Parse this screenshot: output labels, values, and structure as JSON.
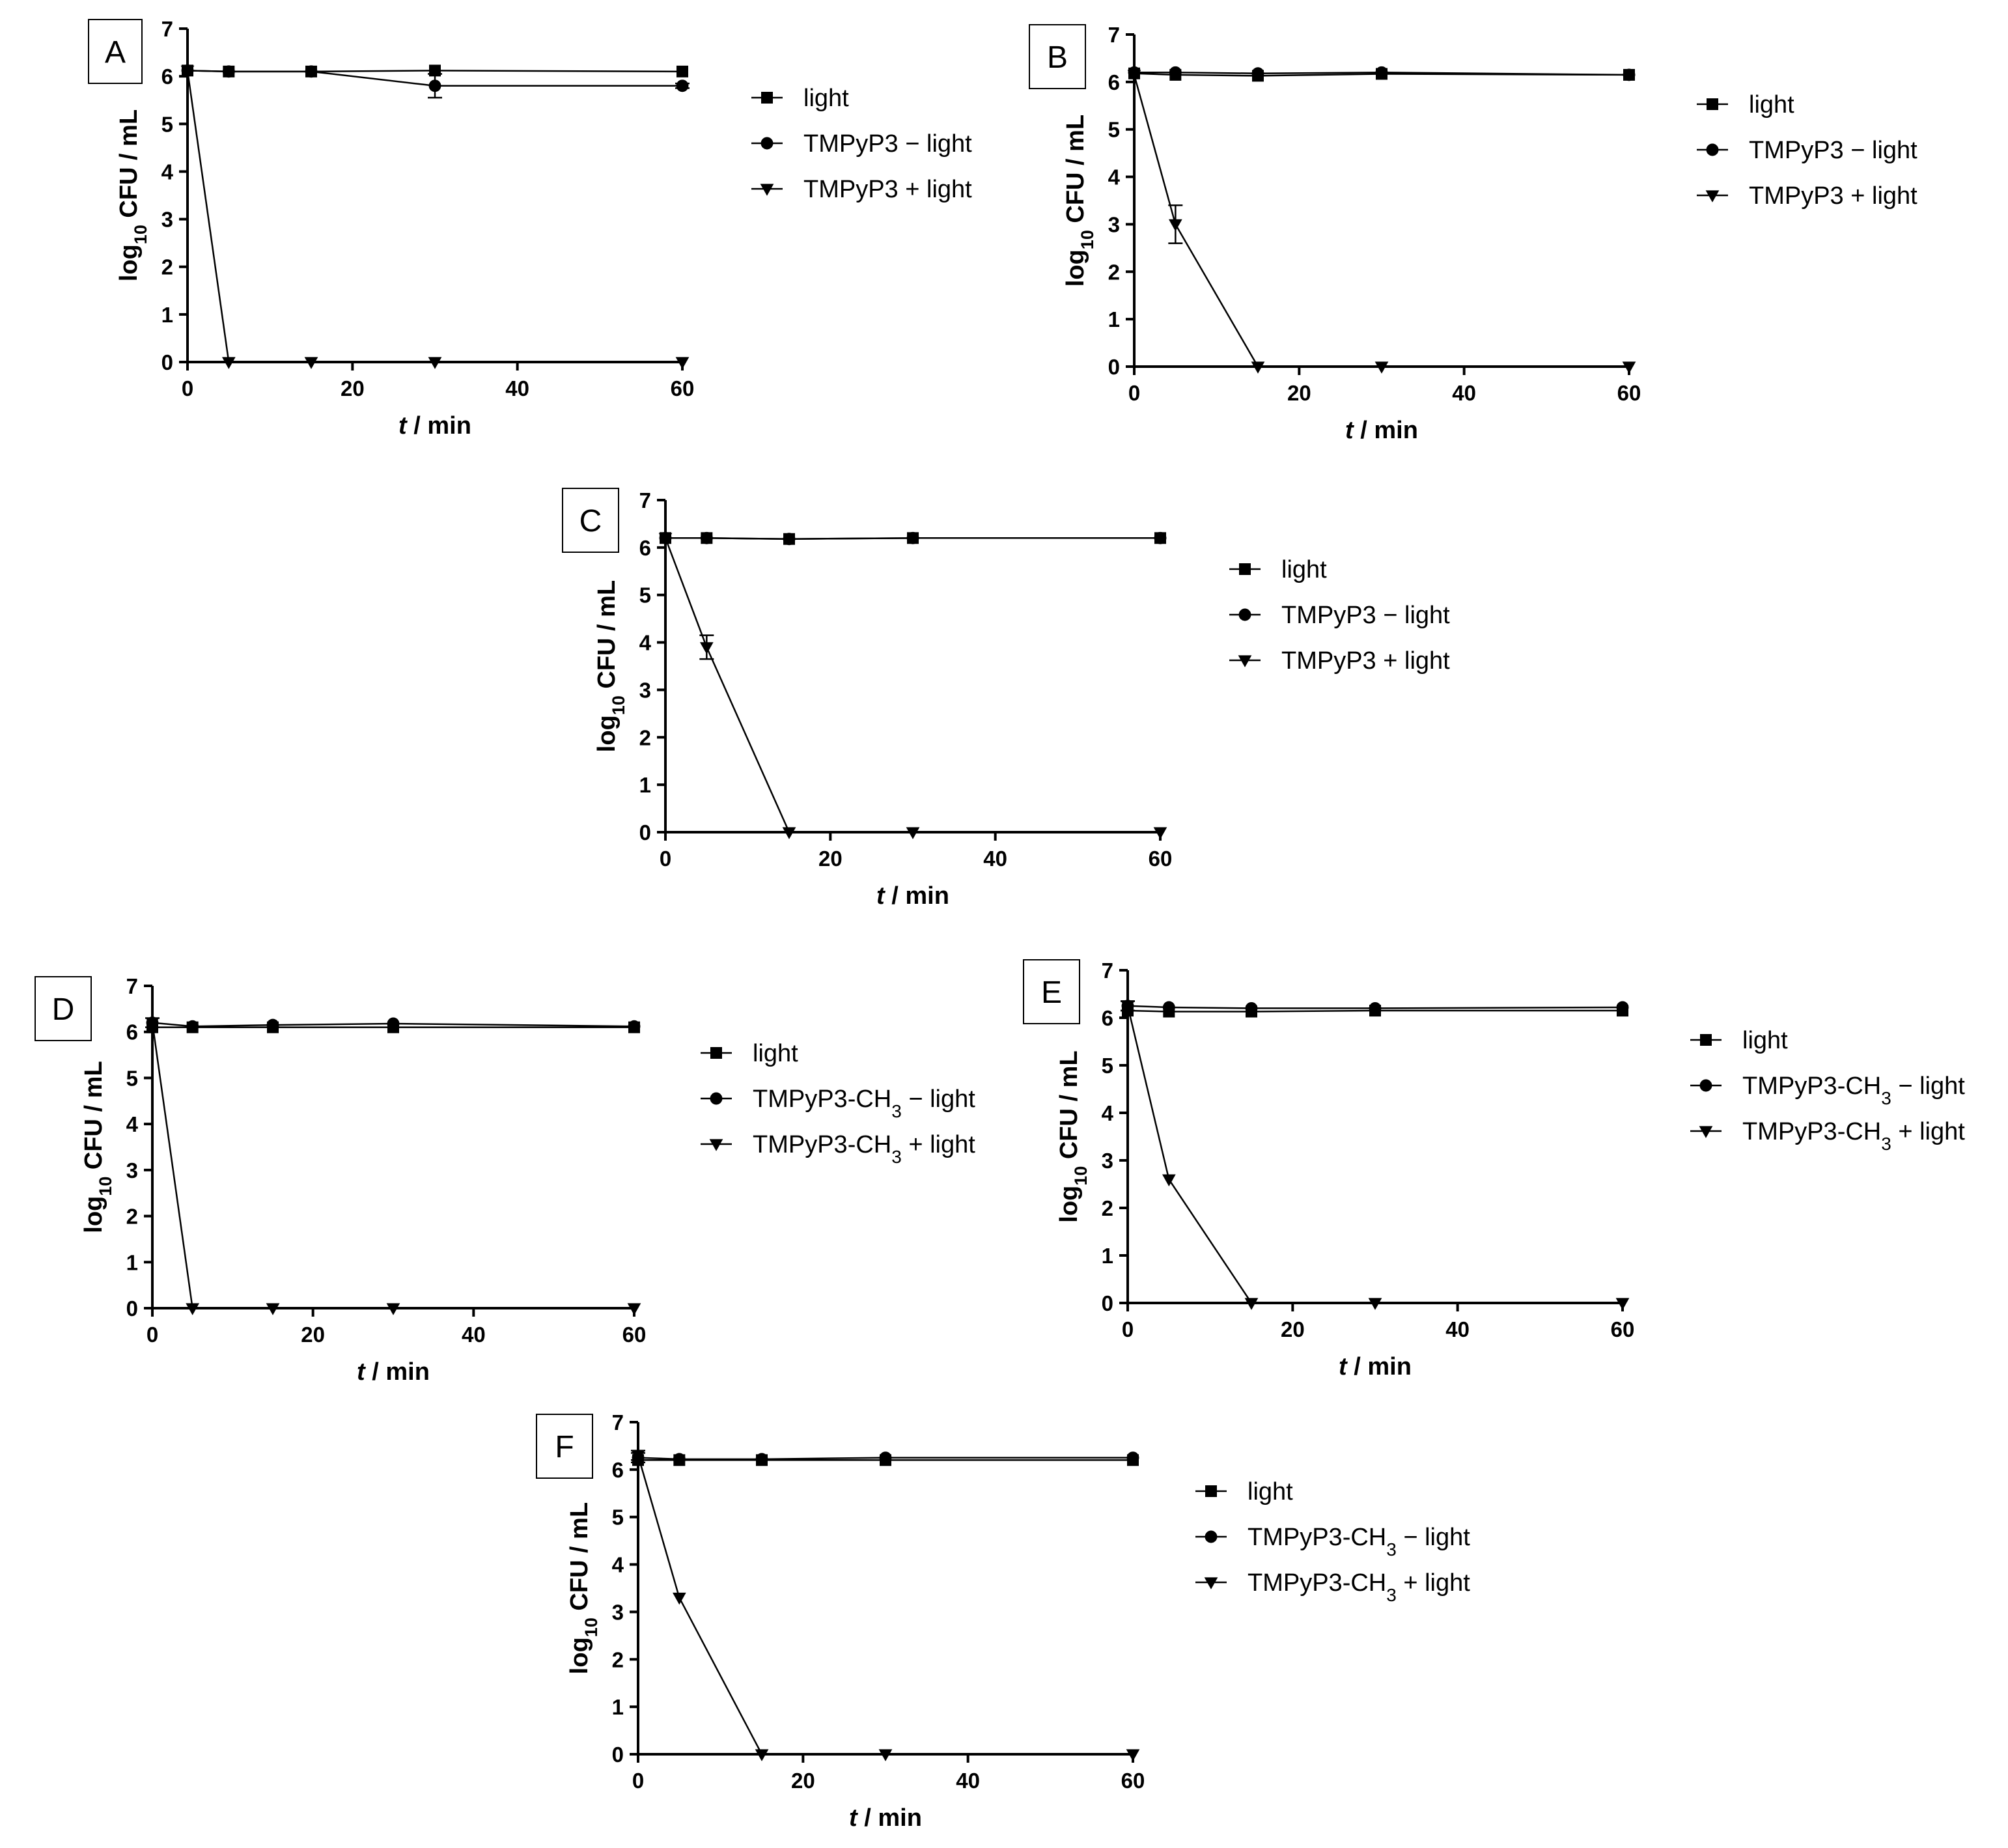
{
  "figure": {
    "x_axis_label": {
      "italic": "t",
      "rest": " / min"
    },
    "y_axis_label": {
      "prefix": "log",
      "sub": "10",
      "rest": " CFU / mL"
    }
  },
  "chart_data": [
    {
      "type": "line",
      "panel": "A",
      "xlim": [
        0,
        60
      ],
      "ylim": [
        0,
        7
      ],
      "xticks": [
        0,
        20,
        40,
        60
      ],
      "yticks": [
        0,
        1,
        2,
        3,
        4,
        5,
        6,
        7
      ],
      "x": [
        0,
        5,
        15,
        30,
        60
      ],
      "series": [
        {
          "name": "light",
          "name_parts": [
            "light"
          ],
          "marker": "square",
          "values": [
            6.12,
            6.1,
            6.1,
            6.12,
            6.1
          ],
          "errors": [
            0,
            0,
            0,
            0,
            0
          ]
        },
        {
          "name": "TMPyP3 − light",
          "name_parts": [
            "TMPyP3 − light"
          ],
          "marker": "circle",
          "values": [
            6.12,
            6.1,
            6.1,
            5.8,
            5.8
          ],
          "errors": [
            0,
            0,
            0,
            0.25,
            0.05
          ]
        },
        {
          "name": "TMPyP3 + light",
          "name_parts": [
            "TMPyP3 + light"
          ],
          "marker": "triangle-down",
          "values": [
            6.12,
            0,
            0,
            0,
            0
          ],
          "errors": [
            0,
            0,
            0,
            0,
            0
          ]
        }
      ]
    },
    {
      "type": "line",
      "panel": "B",
      "xlim": [
        0,
        60
      ],
      "ylim": [
        0,
        7
      ],
      "xticks": [
        0,
        20,
        40,
        60
      ],
      "yticks": [
        0,
        1,
        2,
        3,
        4,
        5,
        6,
        7
      ],
      "x": [
        0,
        5,
        15,
        30,
        60
      ],
      "series": [
        {
          "name": "light",
          "name_parts": [
            "light"
          ],
          "marker": "square",
          "values": [
            6.18,
            6.15,
            6.13,
            6.17,
            6.15
          ],
          "errors": [
            0,
            0,
            0,
            0,
            0
          ]
        },
        {
          "name": "TMPyP3 − light",
          "name_parts": [
            "TMPyP3 − light"
          ],
          "marker": "circle",
          "values": [
            6.2,
            6.2,
            6.18,
            6.2,
            6.15
          ],
          "errors": [
            0,
            0,
            0,
            0,
            0
          ]
        },
        {
          "name": "TMPyP3 + light",
          "name_parts": [
            "TMPyP3 + light"
          ],
          "marker": "triangle-down",
          "values": [
            6.15,
            3.0,
            0,
            0,
            0
          ],
          "errors": [
            0,
            0.4,
            0,
            0,
            0
          ]
        }
      ]
    },
    {
      "type": "line",
      "panel": "C",
      "xlim": [
        0,
        60
      ],
      "ylim": [
        0,
        7
      ],
      "xticks": [
        0,
        20,
        40,
        60
      ],
      "yticks": [
        0,
        1,
        2,
        3,
        4,
        5,
        6,
        7
      ],
      "x": [
        0,
        5,
        15,
        30,
        60
      ],
      "series": [
        {
          "name": "light",
          "name_parts": [
            "light"
          ],
          "marker": "square",
          "values": [
            6.2,
            6.2,
            6.18,
            6.2,
            6.2
          ],
          "errors": [
            0,
            0,
            0,
            0,
            0
          ]
        },
        {
          "name": "TMPyP3 − light",
          "name_parts": [
            "TMPyP3 − light"
          ],
          "marker": "circle",
          "values": [
            6.2,
            6.2,
            6.18,
            6.2,
            6.2
          ],
          "errors": [
            0,
            0,
            0,
            0,
            0
          ]
        },
        {
          "name": "TMPyP3 + light",
          "name_parts": [
            "TMPyP3 + light"
          ],
          "marker": "triangle-down",
          "values": [
            6.2,
            3.9,
            0,
            0,
            0
          ],
          "errors": [
            0,
            0.25,
            0,
            0,
            0
          ]
        }
      ]
    },
    {
      "type": "line",
      "panel": "D",
      "xlim": [
        0,
        60
      ],
      "ylim": [
        0,
        7
      ],
      "xticks": [
        0,
        20,
        40,
        60
      ],
      "yticks": [
        0,
        1,
        2,
        3,
        4,
        5,
        6,
        7
      ],
      "x": [
        0,
        5,
        15,
        30,
        60
      ],
      "series": [
        {
          "name": "light",
          "name_parts": [
            "light"
          ],
          "marker": "square",
          "values": [
            6.1,
            6.1,
            6.1,
            6.1,
            6.1
          ],
          "errors": [
            0,
            0,
            0,
            0,
            0
          ]
        },
        {
          "name": "TMPyP3-CH3 − light",
          "name_parts": [
            "TMPyP3-CH",
            "3",
            " − light"
          ],
          "marker": "circle",
          "values": [
            6.2,
            6.12,
            6.15,
            6.18,
            6.12
          ],
          "errors": [
            0.1,
            0,
            0,
            0,
            0
          ]
        },
        {
          "name": "TMPyP3-CH3 + light",
          "name_parts": [
            "TMPyP3-CH",
            "3",
            " + light"
          ],
          "marker": "triangle-down",
          "values": [
            6.2,
            0,
            0,
            0,
            0
          ],
          "errors": [
            0,
            0,
            0,
            0,
            0
          ]
        }
      ]
    },
    {
      "type": "line",
      "panel": "E",
      "xlim": [
        0,
        60
      ],
      "ylim": [
        0,
        7
      ],
      "xticks": [
        0,
        20,
        40,
        60
      ],
      "yticks": [
        0,
        1,
        2,
        3,
        4,
        5,
        6,
        7
      ],
      "x": [
        0,
        5,
        15,
        30,
        60
      ],
      "series": [
        {
          "name": "light",
          "name_parts": [
            "light"
          ],
          "marker": "square",
          "values": [
            6.15,
            6.13,
            6.13,
            6.15,
            6.15
          ],
          "errors": [
            0,
            0,
            0,
            0,
            0
          ]
        },
        {
          "name": "TMPyP3-CH3 − light",
          "name_parts": [
            "TMPyP3-CH",
            "3",
            " − light"
          ],
          "marker": "circle",
          "values": [
            6.25,
            6.22,
            6.2,
            6.2,
            6.22
          ],
          "errors": [
            0.1,
            0,
            0,
            0,
            0
          ]
        },
        {
          "name": "TMPyP3-CH3 + light",
          "name_parts": [
            "TMPyP3-CH",
            "3",
            " + light"
          ],
          "marker": "triangle-down",
          "values": [
            6.25,
            2.6,
            0,
            0,
            0
          ],
          "errors": [
            0.1,
            0,
            0,
            0,
            0
          ]
        }
      ]
    },
    {
      "type": "line",
      "panel": "F",
      "xlim": [
        0,
        60
      ],
      "ylim": [
        0,
        7
      ],
      "xticks": [
        0,
        20,
        40,
        60
      ],
      "yticks": [
        0,
        1,
        2,
        3,
        4,
        5,
        6,
        7
      ],
      "x": [
        0,
        5,
        15,
        30,
        60
      ],
      "series": [
        {
          "name": "light",
          "name_parts": [
            "light"
          ],
          "marker": "square",
          "values": [
            6.2,
            6.2,
            6.2,
            6.2,
            6.2
          ],
          "errors": [
            0,
            0,
            0,
            0,
            0
          ]
        },
        {
          "name": "TMPyP3-CH3 − light",
          "name_parts": [
            "TMPyP3-CH",
            "3",
            " − light"
          ],
          "marker": "circle",
          "values": [
            6.25,
            6.22,
            6.22,
            6.25,
            6.25
          ],
          "errors": [
            0.1,
            0,
            0,
            0,
            0
          ]
        },
        {
          "name": "TMPyP3-CH3 + light",
          "name_parts": [
            "TMPyP3-CH",
            "3",
            " + light"
          ],
          "marker": "triangle-down",
          "values": [
            6.3,
            3.3,
            0,
            0,
            0
          ],
          "errors": [
            0.1,
            0,
            0,
            0,
            0
          ]
        }
      ]
    }
  ]
}
